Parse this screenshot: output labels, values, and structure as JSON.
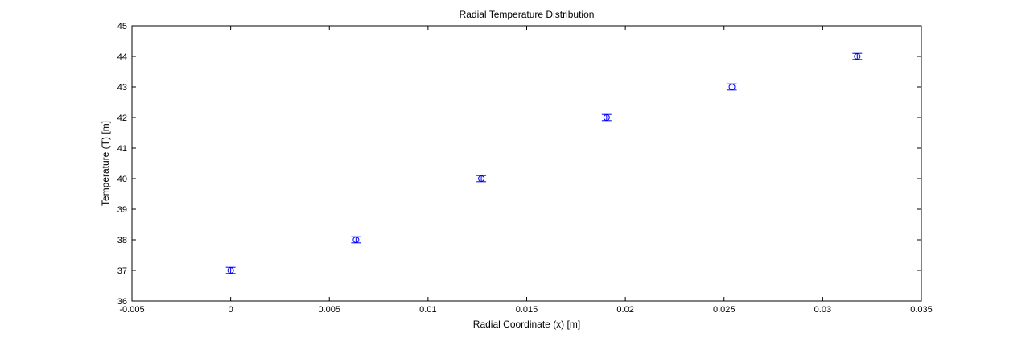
{
  "chart_data": {
    "type": "scatter",
    "title": "Radial Temperature Distribution",
    "xlabel": "Radial Coordinate (x) [m]",
    "ylabel": "Temperature (T) [m]",
    "xlim": [
      -0.005,
      0.035
    ],
    "ylim": [
      36,
      45
    ],
    "x_ticks": [
      -0.005,
      0,
      0.005,
      0.01,
      0.015,
      0.02,
      0.025,
      0.03,
      0.035
    ],
    "x_tick_labels": [
      "-0.005",
      "0",
      "0.005",
      "0.01",
      "0.015",
      "0.02",
      "0.025",
      "0.03",
      "0.035"
    ],
    "y_ticks": [
      36,
      37,
      38,
      39,
      40,
      41,
      42,
      43,
      44,
      45
    ],
    "y_tick_labels": [
      "36",
      "37",
      "38",
      "39",
      "40",
      "41",
      "42",
      "43",
      "44",
      "45"
    ],
    "grid": false,
    "marker": "circle",
    "error_bars": true,
    "series_color": "#0000ff",
    "series": [
      {
        "x": [
          0,
          0.00635,
          0.0127,
          0.01905,
          0.0254,
          0.03175
        ],
        "y": [
          37,
          38,
          40,
          42,
          43,
          44
        ],
        "error": [
          0.1,
          0.1,
          0.1,
          0.1,
          0.1,
          0.1
        ]
      }
    ]
  }
}
